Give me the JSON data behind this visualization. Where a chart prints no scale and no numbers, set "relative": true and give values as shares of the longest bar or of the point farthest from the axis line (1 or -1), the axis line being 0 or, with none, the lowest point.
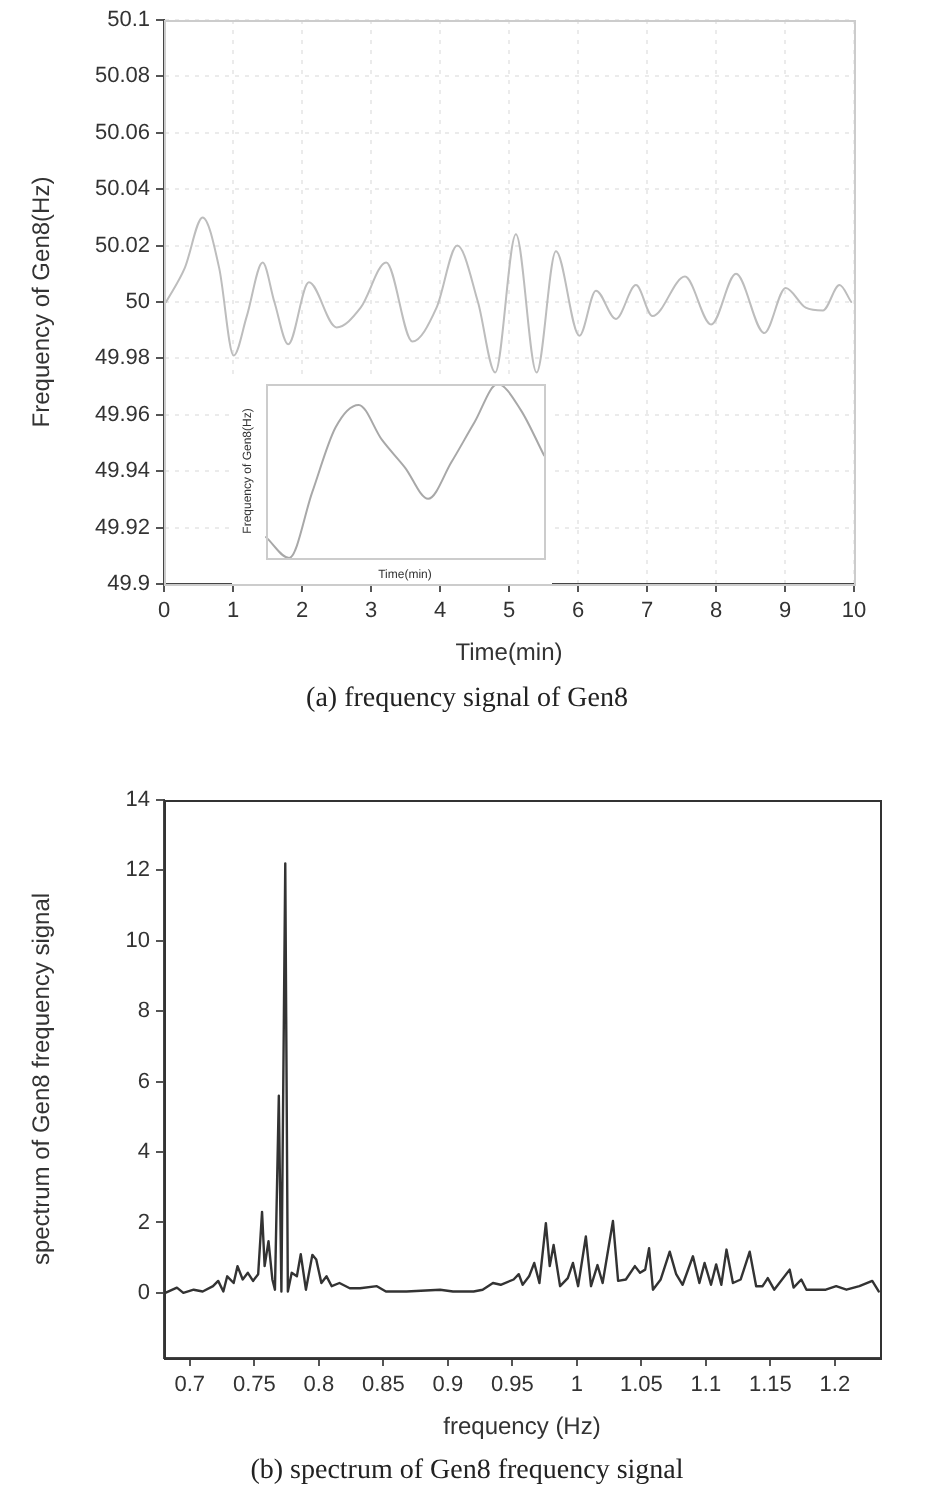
{
  "chart_data": [
    {
      "type": "line",
      "title": "(a) frequency signal of Gen8",
      "xlabel": "Time(min)",
      "ylabel": "Frequency of Gen8(Hz)",
      "xlim": [
        0,
        10
      ],
      "ylim": [
        49.9,
        50.1
      ],
      "xticks": [
        0,
        1,
        2,
        3,
        4,
        5,
        6,
        7,
        8,
        9,
        10
      ],
      "yticks": [
        49.9,
        49.92,
        49.94,
        49.96,
        49.98,
        50,
        50.02,
        50.04,
        50.06,
        50.08,
        50.1
      ],
      "grid": true,
      "line_style": "solid",
      "marker": "none",
      "x": [
        0.03,
        0.3,
        0.56,
        0.8,
        1.01,
        1.2,
        1.43,
        1.6,
        1.8,
        2.1,
        2.5,
        2.85,
        3.22,
        3.6,
        3.95,
        4.25,
        4.55,
        4.8,
        5.1,
        5.4,
        5.68,
        6.02,
        6.26,
        6.55,
        6.84,
        7.08,
        7.55,
        7.93,
        8.29,
        8.7,
        9.01,
        9.3,
        9.55,
        9.79,
        9.96
      ],
      "series": [
        {
          "color": "#bdbdbd",
          "values": [
            50,
            50.012,
            50.03,
            50.012,
            49.981,
            49.995,
            50.014,
            50.0,
            49.985,
            50.007,
            49.991,
            49.998,
            50.014,
            49.986,
            49.998,
            50.02,
            50.0,
            49.975,
            50.024,
            49.975,
            50.018,
            49.988,
            50.004,
            49.994,
            50.006,
            49.995,
            50.009,
            49.992,
            50.01,
            49.989,
            50.005,
            49.998,
            49.997,
            50.006,
            50
          ]
        }
      ]
    },
    {
      "type": "line",
      "relative": true,
      "xlabel": "Time(min)",
      "ylabel": "Frequency of Gen8(Hz)",
      "line_style": "solid",
      "marker": "none",
      "categories": [
        null,
        null,
        null,
        null,
        null,
        null,
        null,
        null,
        null,
        null,
        null,
        null,
        null
      ],
      "series": [
        {
          "color": "#a8a8a8",
          "values": [
            0.12,
            0,
            0.38,
            0.75,
            0.88,
            0.68,
            0.52,
            0.34,
            0.55,
            0.78,
            1,
            0.85,
            0.59
          ]
        }
      ]
    },
    {
      "type": "line",
      "title": "(b) spectrum of Gen8 frequency signal",
      "xlabel": "frequency (Hz)",
      "ylabel": "spectrum of Gen8 frequency signal",
      "xlim": [
        0.68,
        1.235
      ],
      "ylim": [
        -1.85,
        14
      ],
      "xticks": [
        0.7,
        0.75,
        0.8,
        0.85,
        0.9,
        0.95,
        1,
        1.05,
        1.1,
        1.15,
        1.2
      ],
      "yticks": [
        0,
        2,
        4,
        6,
        8,
        10,
        12,
        14
      ],
      "grid": false,
      "line_style": "solid",
      "marker": "none",
      "x": [
        0.681,
        0.69,
        0.695,
        0.703,
        0.71,
        0.718,
        0.722,
        0.726,
        0.729,
        0.734,
        0.737,
        0.741,
        0.745,
        0.749,
        0.753,
        0.756,
        0.758,
        0.761,
        0.764,
        0.766,
        0.769,
        0.771,
        0.774,
        0.776,
        0.779,
        0.783,
        0.786,
        0.79,
        0.795,
        0.798,
        0.802,
        0.806,
        0.81,
        0.816,
        0.824,
        0.832,
        0.845,
        0.852,
        0.868,
        0.894,
        0.904,
        0.92,
        0.927,
        0.935,
        0.941,
        0.951,
        0.955,
        0.958,
        0.963,
        0.967,
        0.971,
        0.976,
        0.979,
        0.982,
        0.987,
        0.993,
        0.997,
        1.001,
        1.007,
        1.011,
        1.016,
        1.02,
        1.028,
        1.032,
        1.038,
        1.045,
        1.049,
        1.053,
        1.056,
        1.059,
        1.065,
        1.072,
        1.077,
        1.082,
        1.09,
        1.095,
        1.099,
        1.104,
        1.108,
        1.112,
        1.116,
        1.121,
        1.127,
        1.134,
        1.139,
        1.144,
        1.148,
        1.153,
        1.165,
        1.168,
        1.174,
        1.178,
        1.193,
        1.201,
        1.209,
        1.219,
        1.229,
        1.234
      ],
      "series": [
        {
          "color": "#333333",
          "values": [
            0,
            0.15,
            0,
            0.09,
            0.04,
            0.19,
            0.34,
            0.04,
            0.47,
            0.28,
            0.76,
            0.38,
            0.57,
            0.34,
            0.53,
            2.3,
            0.76,
            1.47,
            0.38,
            0.09,
            5.6,
            0.04,
            12.2,
            0.04,
            0.57,
            0.47,
            1.1,
            0.09,
            1.08,
            0.95,
            0.28,
            0.47,
            0.19,
            0.28,
            0.13,
            0.13,
            0.19,
            0.04,
            0.04,
            0.09,
            0.04,
            0.04,
            0.09,
            0.28,
            0.23,
            0.38,
            0.53,
            0.23,
            0.47,
            0.85,
            0.28,
            1.98,
            0.76,
            1.36,
            0.19,
            0.42,
            0.85,
            0.19,
            1.6,
            0.19,
            0.79,
            0.28,
            2.04,
            0.34,
            0.38,
            0.76,
            0.57,
            0.66,
            1.27,
            0.09,
            0.38,
            1.17,
            0.53,
            0.23,
            1.04,
            0.28,
            0.85,
            0.23,
            0.81,
            0.23,
            1.23,
            0.28,
            0.38,
            1.17,
            0.19,
            0.19,
            0.42,
            0.09,
            0.66,
            0.15,
            0.38,
            0.09,
            0.09,
            0.19,
            0.09,
            0.19,
            0.34,
            0.04
          ]
        }
      ]
    }
  ]
}
